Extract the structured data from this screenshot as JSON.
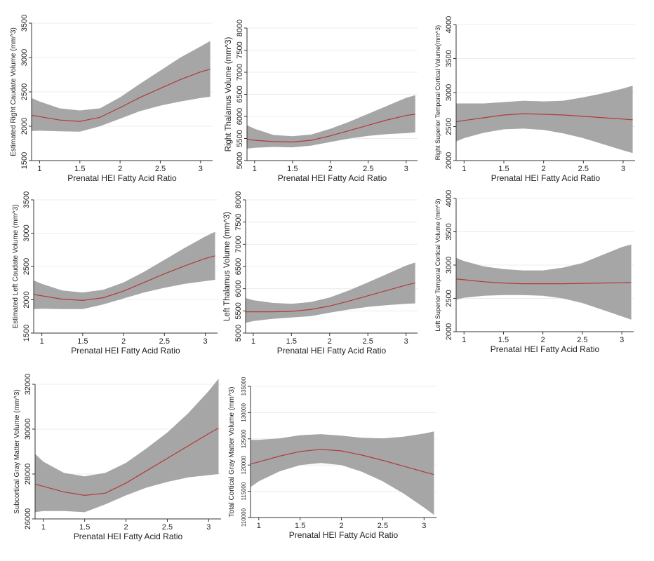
{
  "chart_data": [
    {
      "type": "line",
      "xlabel": "Prenatal HEI Fatty Acid Ratio",
      "ylabel": "Estimated Right Caudate Volume (mm^3)",
      "xlim": [
        0.9,
        3.15
      ],
      "ylim": [
        1500,
        3500
      ],
      "xticks": [
        1,
        1.5,
        2,
        2.5,
        3
      ],
      "xtick_labels": [
        "1",
        "1.5",
        "2",
        "2.5",
        "3"
      ],
      "yticks": [
        1500,
        2000,
        2500,
        3000,
        3500
      ],
      "ytick_labels": [
        "1500",
        "2000",
        "2500",
        "3000",
        "3500"
      ],
      "grid": true,
      "x": [
        0.9,
        1.0,
        1.25,
        1.5,
        1.75,
        2.0,
        2.25,
        2.5,
        2.75,
        3.0,
        3.12
      ],
      "series": [
        {
          "values": [
            2160,
            2140,
            2090,
            2070,
            2130,
            2270,
            2420,
            2550,
            2680,
            2790,
            2830
          ]
        }
      ],
      "ci_lower": [
        1930,
        1935,
        1925,
        1920,
        2000,
        2110,
        2220,
        2300,
        2360,
        2410,
        2430
      ],
      "ci_upper": [
        2410,
        2360,
        2260,
        2230,
        2260,
        2420,
        2620,
        2810,
        3000,
        3160,
        3240
      ],
      "colors": {
        "line": "#b23a3a",
        "band": "#a6a6a6"
      }
    },
    {
      "type": "line",
      "xlabel": "Prenatal HEI Fatty Acid Ratio",
      "ylabel": "Right Thalamus Volume (mm^3)",
      "xlim": [
        0.9,
        3.15
      ],
      "ylim": [
        5000,
        8000
      ],
      "xticks": [
        1,
        1.5,
        2,
        2.5,
        3
      ],
      "xtick_labels": [
        "1",
        "1.5",
        "2",
        "2.5",
        "3"
      ],
      "yticks": [
        5000,
        5500,
        6000,
        6500,
        7000,
        7500,
        8000
      ],
      "ytick_labels": [
        "5000",
        "5500",
        "6000",
        "6500",
        "7000",
        "7500",
        "8000"
      ],
      "grid": true,
      "x": [
        0.9,
        1.0,
        1.25,
        1.5,
        1.75,
        2.0,
        2.25,
        2.5,
        2.75,
        3.0,
        3.12
      ],
      "series": [
        {
          "values": [
            5480,
            5460,
            5430,
            5420,
            5460,
            5560,
            5680,
            5800,
            5920,
            6020,
            6050
          ]
        }
      ],
      "ci_lower": [
        5270,
        5290,
        5310,
        5300,
        5340,
        5420,
        5500,
        5560,
        5600,
        5620,
        5640
      ],
      "ci_upper": [
        5800,
        5720,
        5580,
        5550,
        5590,
        5720,
        5880,
        6060,
        6240,
        6420,
        6480
      ],
      "colors": {
        "line": "#b23a3a",
        "band": "#a6a6a6"
      }
    },
    {
      "type": "line",
      "xlabel": "Prenatal HEI Fatty Acid Ratio",
      "ylabel": "Right Superior Temporal Cortical Volume(mm^3)",
      "xlim": [
        0.9,
        3.15
      ],
      "ylim": [
        2000,
        4000
      ],
      "xticks": [
        1,
        1.5,
        2,
        2.5,
        3
      ],
      "xtick_labels": [
        "1",
        "1.5",
        "2",
        "2.5",
        "3"
      ],
      "yticks": [
        2000,
        2500,
        3000,
        3500,
        4000
      ],
      "ytick_labels": [
        "2000",
        "2500",
        "3000",
        "3500",
        "4000"
      ],
      "grid": true,
      "x": [
        0.9,
        1.0,
        1.25,
        1.5,
        1.75,
        2.0,
        2.25,
        2.5,
        2.75,
        3.0,
        3.12
      ],
      "series": [
        {
          "values": [
            2570,
            2590,
            2630,
            2670,
            2690,
            2680,
            2670,
            2650,
            2630,
            2610,
            2600
          ]
        }
      ],
      "ci_lower": [
        2280,
        2330,
        2410,
        2460,
        2470,
        2450,
        2400,
        2330,
        2240,
        2150,
        2110
      ],
      "ci_upper": [
        2840,
        2840,
        2840,
        2860,
        2880,
        2870,
        2880,
        2930,
        2990,
        3060,
        3100
      ],
      "colors": {
        "line": "#b23a3a",
        "band": "#a6a6a6"
      }
    },
    {
      "type": "line",
      "xlabel": "Prenatal HEI Fatty Acid Ratio",
      "ylabel": "Estimated Left Caudate Volume (mm^3)",
      "xlim": [
        0.9,
        3.15
      ],
      "ylim": [
        1500,
        3500
      ],
      "xticks": [
        1,
        1.5,
        2,
        2.5,
        3
      ],
      "xtick_labels": [
        "1",
        "1.5",
        "2",
        "2.5",
        "3"
      ],
      "yticks": [
        1500,
        2000,
        2500,
        3000,
        3500
      ],
      "ytick_labels": [
        "1500",
        "2000",
        "2500",
        "3000",
        "3500"
      ],
      "grid": true,
      "x": [
        0.9,
        1.0,
        1.25,
        1.5,
        1.75,
        2.0,
        2.25,
        2.5,
        2.75,
        3.0,
        3.12
      ],
      "series": [
        {
          "values": [
            2080,
            2060,
            2010,
            1990,
            2030,
            2130,
            2260,
            2390,
            2510,
            2620,
            2660
          ]
        }
      ],
      "ci_lower": [
        1860,
        1865,
        1860,
        1860,
        1930,
        2020,
        2110,
        2180,
        2240,
        2280,
        2300
      ],
      "ci_upper": [
        2290,
        2240,
        2140,
        2110,
        2150,
        2260,
        2420,
        2600,
        2780,
        2950,
        3020
      ],
      "colors": {
        "line": "#b23a3a",
        "band": "#a6a6a6"
      }
    },
    {
      "type": "line",
      "xlabel": "Prenatal HEI Fatty Acid Ratio",
      "ylabel": "Left Thalamus Volume (mm^3)",
      "xlim": [
        0.9,
        3.15
      ],
      "ylim": [
        5000,
        8000
      ],
      "xticks": [
        1,
        1.5,
        2,
        2.5,
        3
      ],
      "xtick_labels": [
        "1",
        "1.5",
        "2",
        "2.5",
        "3"
      ],
      "yticks": [
        5000,
        5500,
        6000,
        6500,
        7000,
        7500,
        8000
      ],
      "ytick_labels": [
        "5000",
        "5500",
        "6000",
        "6500",
        "7000",
        "7500",
        "8000"
      ],
      "grid": true,
      "x": [
        0.9,
        1.0,
        1.25,
        1.5,
        1.75,
        2.0,
        2.25,
        2.5,
        2.75,
        3.0,
        3.12
      ],
      "series": [
        {
          "values": [
            5480,
            5480,
            5480,
            5490,
            5530,
            5610,
            5720,
            5840,
            5960,
            6080,
            6130
          ]
        }
      ],
      "ci_lower": [
        5230,
        5270,
        5320,
        5350,
        5380,
        5460,
        5530,
        5590,
        5630,
        5660,
        5670
      ],
      "ci_upper": [
        5790,
        5740,
        5680,
        5660,
        5700,
        5800,
        5960,
        6140,
        6330,
        6520,
        6590
      ],
      "colors": {
        "line": "#b23a3a",
        "band": "#a6a6a6"
      }
    },
    {
      "type": "line",
      "xlabel": "Prenatal HEI Fatty Acid Ratio",
      "ylabel": "Left Superior Temporal Cortical Volume (mm^3)",
      "xlim": [
        0.9,
        3.15
      ],
      "ylim": [
        2000,
        4000
      ],
      "xticks": [
        1,
        1.5,
        2,
        2.5,
        3
      ],
      "xtick_labels": [
        "1",
        "1.5",
        "2",
        "2.5",
        "3"
      ],
      "yticks": [
        2000,
        2500,
        3000,
        3500,
        4000
      ],
      "ytick_labels": [
        "2000",
        "2500",
        "3000",
        "3500",
        "4000"
      ],
      "grid": true,
      "x": [
        0.9,
        1.0,
        1.25,
        1.5,
        1.75,
        2.0,
        2.25,
        2.5,
        2.75,
        3.0,
        3.12
      ],
      "series": [
        {
          "values": [
            2790,
            2780,
            2750,
            2730,
            2720,
            2720,
            2720,
            2725,
            2730,
            2735,
            2740
          ]
        }
      ],
      "ci_lower": [
        2480,
        2510,
        2540,
        2550,
        2550,
        2540,
        2500,
        2430,
        2330,
        2230,
        2180
      ],
      "ci_upper": [
        3110,
        3060,
        2980,
        2940,
        2920,
        2920,
        2960,
        3030,
        3150,
        3270,
        3310
      ],
      "colors": {
        "line": "#b23a3a",
        "band": "#a6a6a6"
      }
    },
    {
      "type": "line",
      "xlabel": "Prenatal HEI Fatty Acid Ratio",
      "ylabel": "Subcortical Gray Matter Volume (mm^3)",
      "xlim": [
        0.9,
        3.15
      ],
      "ylim": [
        26000,
        32000
      ],
      "xticks": [
        1,
        1.5,
        2,
        2.5,
        3
      ],
      "xtick_labels": [
        "1",
        "1.5",
        "2",
        "2.5",
        "3"
      ],
      "yticks": [
        26000,
        28000,
        30000,
        32000
      ],
      "ytick_labels": [
        "26000",
        "28000",
        "30000",
        "32000"
      ],
      "grid": true,
      "x": [
        0.9,
        1.0,
        1.25,
        1.5,
        1.75,
        2.0,
        2.25,
        2.5,
        2.75,
        3.0,
        3.12
      ],
      "series": [
        {
          "values": [
            27550,
            27450,
            27200,
            27050,
            27150,
            27600,
            28150,
            28700,
            29250,
            29800,
            30050
          ]
        }
      ],
      "ci_lower": [
        26300,
        26350,
        26350,
        26300,
        26650,
        27050,
        27400,
        27650,
        27850,
        27950,
        28000
      ],
      "ci_upper": [
        28900,
        28550,
        28050,
        27900,
        28050,
        28500,
        29150,
        29850,
        30700,
        31700,
        32250
      ],
      "colors": {
        "line": "#b23a3a",
        "band": "#a6a6a6"
      }
    },
    {
      "type": "line",
      "xlabel": "Prenatal HEI Fatty Acid Ratio",
      "ylabel": "Total Cortical Gray Matter Volume (mm^3)",
      "xlim": [
        0.9,
        3.15
      ],
      "ylim": [
        110000,
        135000
      ],
      "xticks": [
        1,
        1.5,
        2,
        2.5,
        3
      ],
      "xtick_labels": [
        "1",
        "1.5",
        "2",
        "2.5",
        "3"
      ],
      "yticks": [
        110000,
        115000,
        120000,
        125000,
        130000,
        135000
      ],
      "ytick_labels": [
        "110000",
        "115000",
        "120000",
        "125000",
        "130000",
        "135000"
      ],
      "grid": true,
      "x": [
        0.9,
        1.0,
        1.25,
        1.5,
        1.75,
        2.0,
        2.25,
        2.5,
        2.75,
        3.0,
        3.12
      ],
      "series": [
        {
          "values": [
            120200,
            120600,
            121700,
            122600,
            123000,
            122700,
            121900,
            120900,
            119800,
            118700,
            118200
          ]
        }
      ],
      "ci_lower": [
        115800,
        116900,
        118800,
        120000,
        120400,
        120000,
        118700,
        116900,
        114600,
        111900,
        110500
      ],
      "ci_upper": [
        124800,
        124800,
        125100,
        125700,
        125900,
        125600,
        125200,
        125100,
        125400,
        126000,
        126400
      ],
      "colors": {
        "line": "#b23a3a",
        "band": "#a6a6a6"
      }
    }
  ]
}
